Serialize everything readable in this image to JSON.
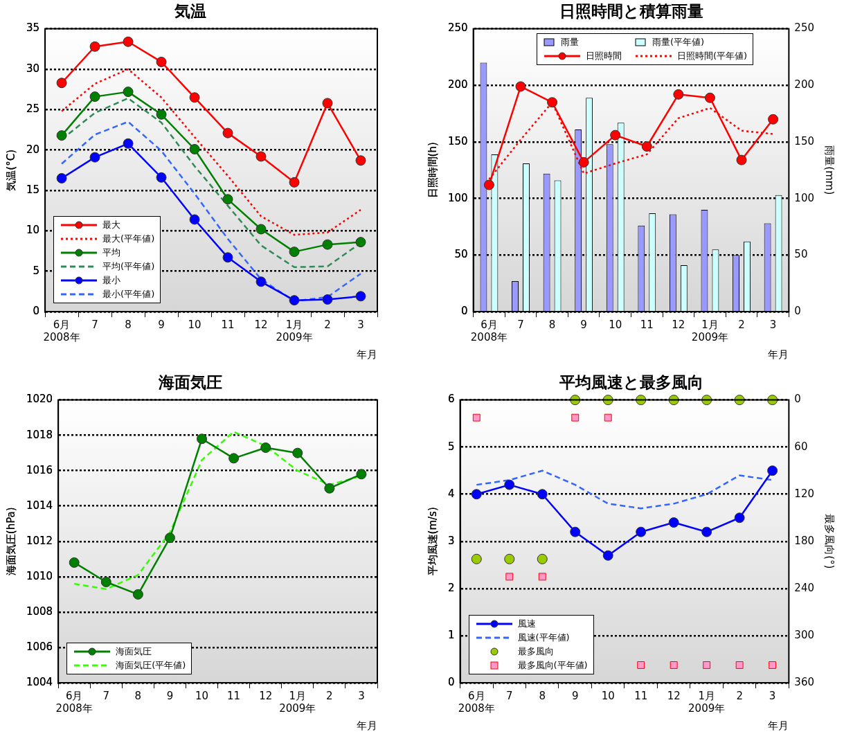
{
  "chart_data": [
    {
      "type": "line",
      "title": "気温",
      "ylabel": "気温(°C)",
      "xlabel": "年月",
      "categories": [
        "6月\n2008年",
        "7",
        "8",
        "9",
        "10",
        "11",
        "12",
        "1月\n2009年",
        "2",
        "3"
      ],
      "ylim": [
        0,
        35
      ],
      "yticks": [
        0,
        5,
        10,
        15,
        20,
        25,
        30,
        35
      ],
      "grid": "y",
      "legend": "bottom left",
      "series": [
        {
          "name": "最大",
          "color": "#ff0000",
          "marker": "circle",
          "line_style": "solid",
          "values": [
            28.3,
            32.8,
            33.4,
            30.9,
            26.5,
            22.1,
            19.2,
            16.0,
            25.8,
            18.7
          ]
        },
        {
          "name": "最大(平年値)",
          "color": "#ff0000",
          "marker": "none",
          "line_style": "dotted",
          "values": [
            24.8,
            28.2,
            30.0,
            26.5,
            21.6,
            16.8,
            11.8,
            9.5,
            9.8,
            12.6
          ]
        },
        {
          "name": "平均",
          "color": "#008000",
          "marker": "circle",
          "line_style": "solid",
          "values": [
            21.8,
            26.6,
            27.2,
            24.4,
            20.1,
            13.9,
            10.2,
            7.4,
            8.3,
            8.6
          ]
        },
        {
          "name": "平均(平年値)",
          "color": "#2e8b57",
          "marker": "none",
          "line_style": "dashed",
          "values": [
            21.3,
            24.6,
            26.4,
            23.4,
            18.0,
            13.1,
            8.2,
            5.5,
            5.6,
            8.5
          ]
        },
        {
          "name": "最小",
          "color": "#0000ff",
          "marker": "circle",
          "line_style": "solid",
          "values": [
            16.5,
            19.1,
            20.8,
            16.6,
            11.4,
            6.7,
            3.7,
            1.4,
            1.5,
            1.9
          ]
        },
        {
          "name": "最小(平年値)",
          "color": "#3366ff",
          "marker": "none",
          "line_style": "dashed",
          "values": [
            18.3,
            21.9,
            23.5,
            19.9,
            14.6,
            9.0,
            4.0,
            1.3,
            1.8,
            4.7
          ]
        }
      ]
    },
    {
      "type": "bar",
      "title": "日照時間と積算雨量",
      "ylabel": "日照時間(h)",
      "y2label": "雨量(mm)",
      "xlabel": "年月",
      "categories": [
        "6月\n2008年",
        "7",
        "8",
        "9",
        "10",
        "11",
        "12",
        "1月\n2009年",
        "2",
        "3"
      ],
      "ylim": [
        0,
        250
      ],
      "yticks": [
        0,
        50,
        100,
        150,
        200,
        250
      ],
      "y2lim": [
        0,
        250
      ],
      "y2ticks": [
        0,
        50,
        100,
        150,
        200,
        250
      ],
      "grid": "y",
      "legend": "top",
      "series": [
        {
          "name": "雨量",
          "type": "bar",
          "axis": "y2",
          "color": "#9999ff",
          "values": [
            220,
            27,
            122,
            161,
            148,
            76,
            86,
            90,
            50,
            78
          ]
        },
        {
          "name": "雨量(平年値)",
          "type": "bar",
          "axis": "y2",
          "color": "#ccffff",
          "values": [
            139,
            131,
            116,
            189,
            167,
            87,
            41,
            55,
            62,
            103
          ]
        },
        {
          "name": "日照時間",
          "type": "line",
          "color": "#ff0000",
          "marker": "circle",
          "line_style": "solid",
          "values": [
            112,
            199,
            185,
            132,
            156,
            146,
            192,
            189,
            134,
            170
          ]
        },
        {
          "name": "日照時間(平年値)",
          "type": "line",
          "color": "#ff0000",
          "marker": "none",
          "line_style": "dotted",
          "values": [
            117,
            152,
            185,
            122,
            131,
            139,
            171,
            180,
            160,
            157
          ]
        }
      ]
    },
    {
      "type": "line",
      "title": "海面気圧",
      "ylabel": "海面気圧(hPa)",
      "xlabel": "年月",
      "categories": [
        "6月\n2008年",
        "7",
        "8",
        "9",
        "10",
        "11",
        "12",
        "1月\n2009年",
        "2",
        "3"
      ],
      "ylim": [
        1004,
        1020
      ],
      "yticks": [
        1004,
        1006,
        1008,
        1010,
        1012,
        1014,
        1016,
        1018,
        1020
      ],
      "grid": "y",
      "legend": "bottom left",
      "series": [
        {
          "name": "海面気圧",
          "color": "#008000",
          "marker": "circle",
          "line_style": "solid",
          "values": [
            1010.8,
            1009.7,
            1009.0,
            1012.2,
            1017.8,
            1016.7,
            1017.3,
            1017.0,
            1015.0,
            1015.8
          ]
        },
        {
          "name": "海面気圧(平年値)",
          "color": "#33ff00",
          "marker": "none",
          "line_style": "dashed",
          "values": [
            1009.6,
            1009.3,
            1010.1,
            1012.5,
            1016.6,
            1018.2,
            1017.4,
            1016.0,
            1015.2,
            1015.7
          ]
        }
      ]
    },
    {
      "type": "line",
      "title": "平均風速と最多風向",
      "ylabel": "平均風速(m/s)",
      "y2label": "最多風向(°)",
      "xlabel": "年月",
      "categories": [
        "6月\n2008年",
        "7",
        "8",
        "9",
        "10",
        "11",
        "12",
        "1月\n2009年",
        "2",
        "3"
      ],
      "ylim": [
        0,
        6
      ],
      "yticks": [
        0,
        1,
        2,
        3,
        4,
        5,
        6
      ],
      "y2lim": [
        360,
        0
      ],
      "y2ticks": [
        0,
        60,
        120,
        180,
        240,
        300,
        360
      ],
      "grid": "y",
      "legend": "bottom left",
      "series": [
        {
          "name": "風速",
          "color": "#0000ff",
          "marker": "circle",
          "line_style": "solid",
          "values": [
            4.0,
            4.2,
            4.0,
            3.2,
            2.7,
            3.2,
            3.4,
            3.2,
            3.5,
            4.5
          ]
        },
        {
          "name": "風速(平年値)",
          "color": "#3366ff",
          "marker": "none",
          "line_style": "dashed",
          "values": [
            4.2,
            4.3,
            4.5,
            4.2,
            3.8,
            3.7,
            3.8,
            4.0,
            4.4,
            4.3
          ]
        },
        {
          "name": "最多風向",
          "type": "scatter",
          "axis": "y2",
          "color": "#99cc00",
          "marker": "circle",
          "values": [
            202.5,
            202.5,
            202.5,
            0,
            0,
            0,
            0,
            0,
            0,
            0
          ]
        },
        {
          "name": "最多風向(平年値)",
          "type": "scatter",
          "axis": "y2",
          "color": "#ff99cc",
          "marker": "square",
          "values": [
            22.5,
            225,
            225,
            22.5,
            22.5,
            337.5,
            337.5,
            337.5,
            337.5,
            337.5
          ]
        }
      ]
    }
  ]
}
